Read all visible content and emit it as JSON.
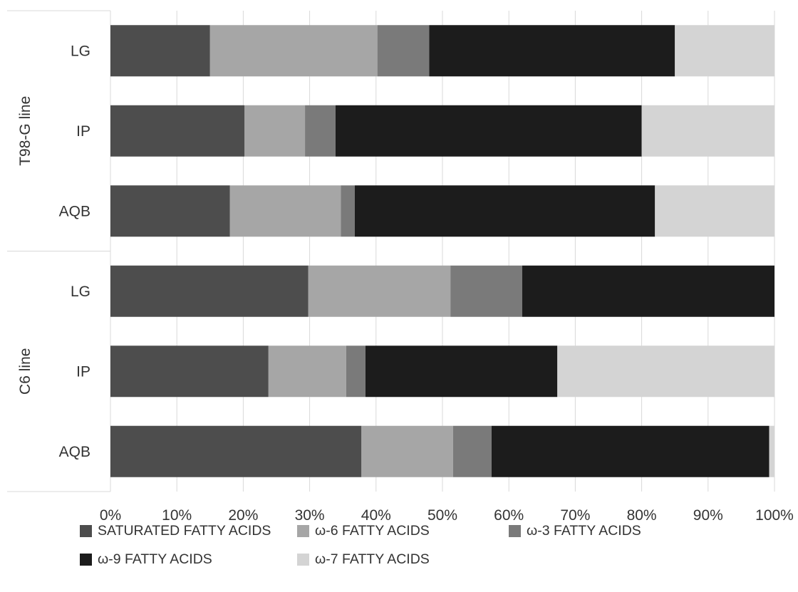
{
  "chart_data": {
    "type": "bar",
    "orientation": "horizontal",
    "stacked": "percent",
    "groups": [
      {
        "name": "T98-G line",
        "categories": [
          "LG",
          "IP",
          "AQB"
        ]
      },
      {
        "name": "C6 line",
        "categories": [
          "LG",
          "IP",
          "AQB"
        ]
      }
    ],
    "categories": [
      "LG",
      "IP",
      "AQB",
      "LG",
      "IP",
      "AQB"
    ],
    "series": [
      {
        "name": "SATURATED FATTY ACIDS",
        "color": "#4d4d4d",
        "values": [
          15,
          20.2,
          18,
          29.8,
          23.8,
          37.8
        ]
      },
      {
        "name": "ω-6 FATTY ACIDS",
        "color": "#a6a6a6",
        "values": [
          25.2,
          9.1,
          16.7,
          21.4,
          11.7,
          13.8
        ]
      },
      {
        "name": "ω-3 FATTY ACIDS",
        "color": "#7a7a7a",
        "values": [
          7.8,
          4.6,
          2.1,
          10.8,
          2.9,
          5.8
        ]
      },
      {
        "name": "ω-9 FATTY ACIDS",
        "color": "#1c1c1c",
        "values": [
          37,
          46.1,
          45.2,
          38,
          28.9,
          41.8
        ]
      },
      {
        "name": "ω-7 FATTY ACIDS",
        "color": "#d4d4d4",
        "values": [
          15,
          20,
          18,
          0,
          32.7,
          0.8
        ]
      }
    ],
    "xlim": [
      0,
      100
    ],
    "x_ticks": [
      "0%",
      "10%",
      "20%",
      "30%",
      "40%",
      "50%",
      "60%",
      "70%",
      "80%",
      "90%",
      "100%"
    ],
    "grid": true,
    "legend_position": "bottom",
    "title": "",
    "xlabel": "",
    "ylabel": ""
  }
}
